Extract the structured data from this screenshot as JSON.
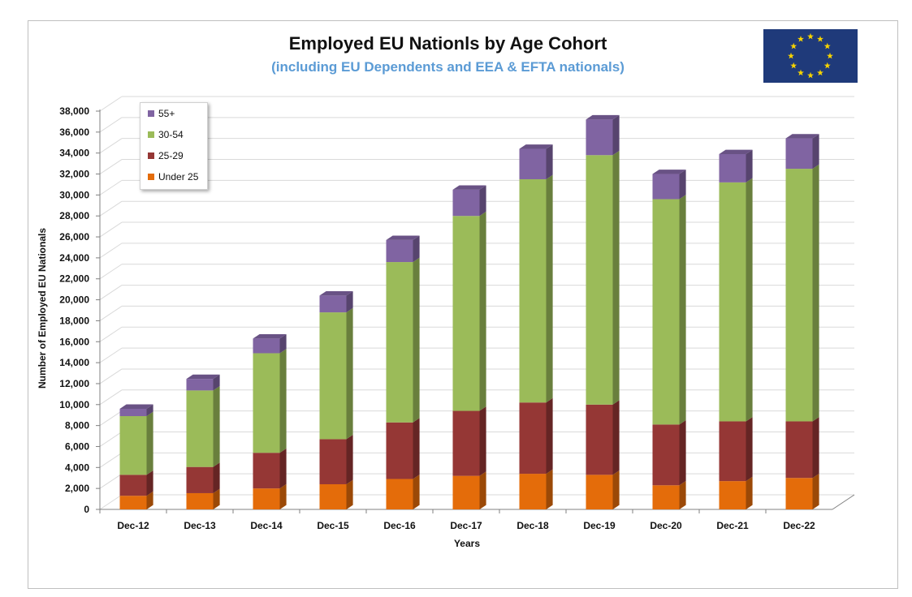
{
  "header": {
    "title": "Employed EU Nationls by Age Cohort",
    "subtitle": "(including EU Dependents and EEA & EFTA nationals)"
  },
  "flag": {
    "icon": "eu-flag-icon",
    "background": "#1f3a7a",
    "star_color": "#f6d300"
  },
  "chart_data": {
    "type": "bar",
    "stacked": true,
    "style": "3d-column",
    "title": "Employed EU Nationls by Age Cohort",
    "subtitle": "(including EU Dependents and EEA & EFTA nationals)",
    "xlabel": "Years",
    "ylabel": "Number of Employed EU Nationals",
    "ylim": [
      0,
      38000
    ],
    "ytick_labels": [
      "0",
      "2,000",
      "4,000",
      "6,000",
      "8,000",
      "10,000",
      "12,000",
      "14,000",
      "16,000",
      "18,000",
      "20,000",
      "22,000",
      "24,000",
      "26,000",
      "28,000",
      "30,000",
      "32,000",
      "34,000",
      "36,000",
      "38,000"
    ],
    "grid": true,
    "legend_position": "top-left",
    "categories": [
      "Dec-12",
      "Dec-13",
      "Dec-14",
      "Dec-15",
      "Dec-16",
      "Dec-17",
      "Dec-18",
      "Dec-19",
      "Dec-20",
      "Dec-21",
      "Dec-22"
    ],
    "series": [
      {
        "name": "Under 25",
        "color": "#e46c0a",
        "values": [
          1300,
          1550,
          2000,
          2400,
          2900,
          3200,
          3400,
          3300,
          2300,
          2700,
          3000
        ]
      },
      {
        "name": "25-29",
        "color": "#953735",
        "values": [
          2000,
          2500,
          3400,
          4300,
          5400,
          6200,
          6800,
          6700,
          5800,
          5700,
          5400
        ]
      },
      {
        "name": "30-54",
        "color": "#9bbb59",
        "values": [
          5600,
          7300,
          9500,
          12100,
          15300,
          18600,
          21300,
          23800,
          21500,
          22800,
          24100
        ]
      },
      {
        "name": "55+",
        "color": "#8064a2",
        "values": [
          700,
          1100,
          1400,
          1600,
          2100,
          2500,
          2900,
          3400,
          2400,
          2700,
          2900
        ]
      }
    ]
  }
}
